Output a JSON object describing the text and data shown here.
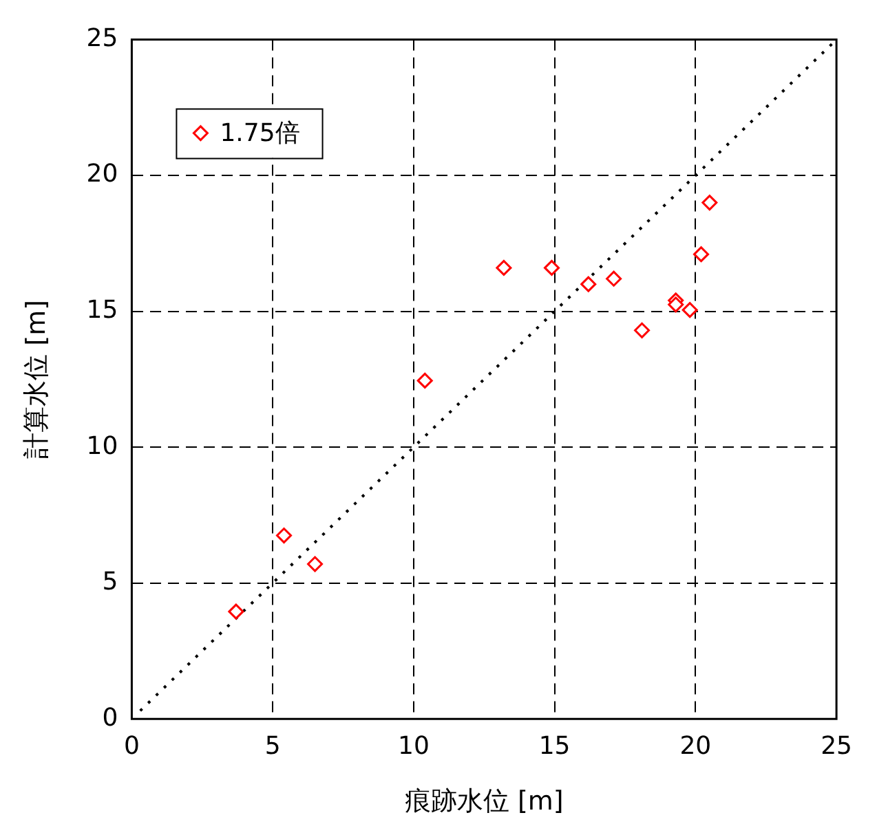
{
  "chart_data": {
    "type": "scatter",
    "xlabel": "痕跡水位 [m]",
    "ylabel": "計算水位 [m]",
    "xlim": [
      0,
      25
    ],
    "ylim": [
      0,
      25
    ],
    "xticks": [
      0,
      5,
      10,
      15,
      20,
      25
    ],
    "yticks": [
      0,
      5,
      10,
      15,
      20,
      25
    ],
    "grid": true,
    "legend": "top left",
    "series": [
      {
        "name": "1.75倍",
        "color": "#ff0000",
        "marker": "diamond",
        "x": [
          3.7,
          5.4,
          6.5,
          10.4,
          13.2,
          14.9,
          16.2,
          17.1,
          18.1,
          19.3,
          19.3,
          19.8,
          20.2,
          20.5
        ],
        "values": [
          3.95,
          6.75,
          5.7,
          12.45,
          16.6,
          16.6,
          16.0,
          16.2,
          14.3,
          15.4,
          15.25,
          15.05,
          17.1,
          19.0
        ]
      },
      {
        "type": "line",
        "color": "#000000",
        "line_style": "dotted",
        "marker": "none",
        "x": [
          0.3,
          25
        ],
        "values": [
          0.3,
          25
        ]
      }
    ]
  }
}
